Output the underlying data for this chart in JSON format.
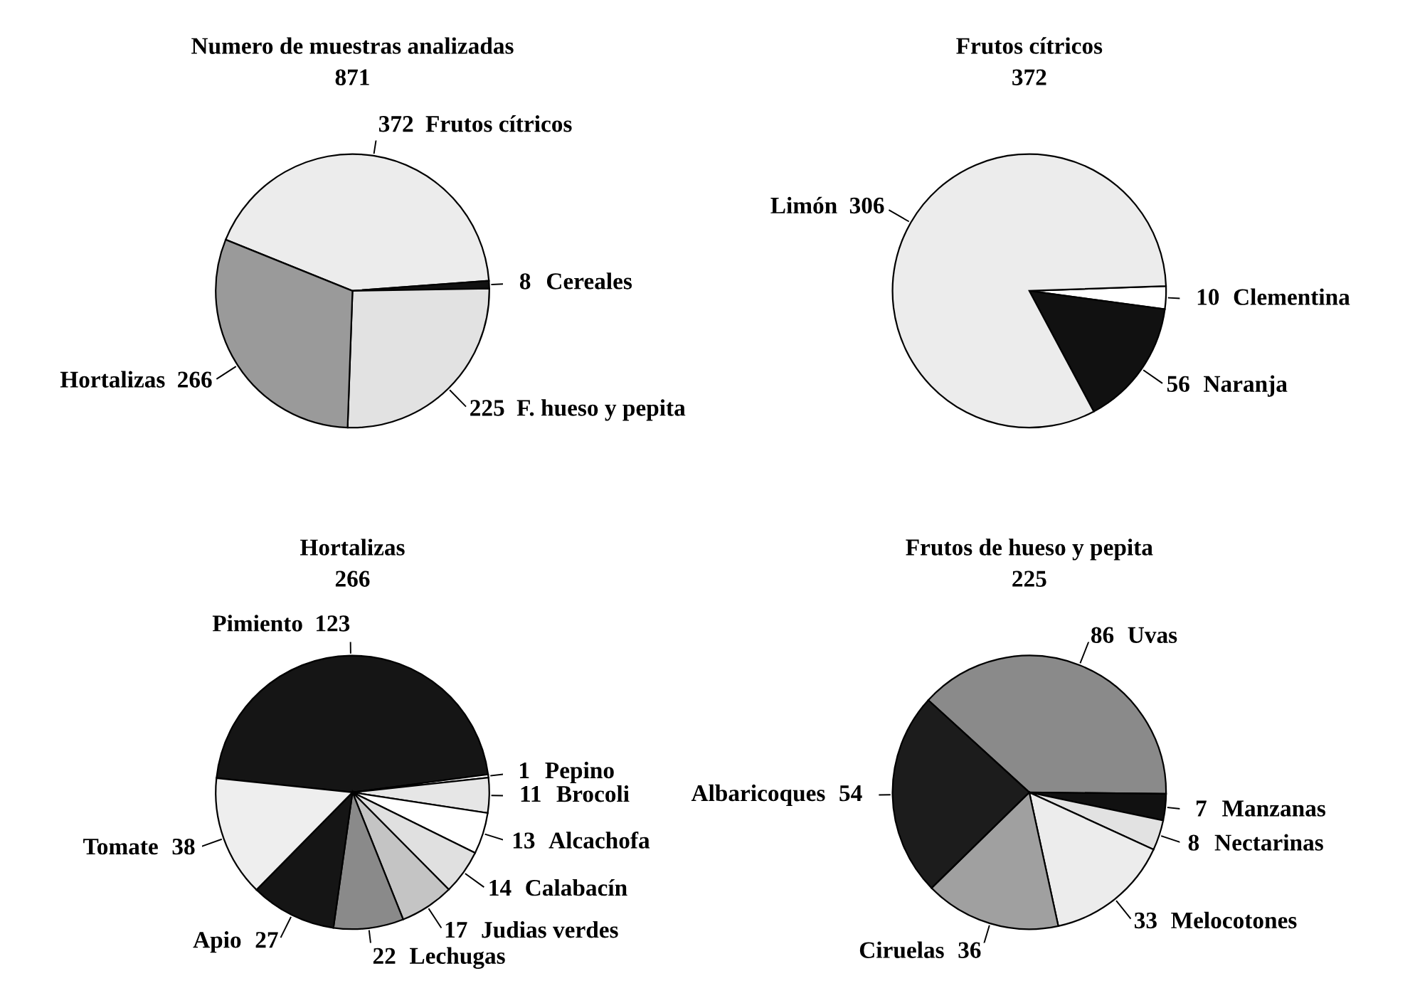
{
  "chart_data": [
    {
      "type": "pie",
      "title": "Numero de muestras analizadas",
      "subtitle": "871",
      "categories": [
        "Frutos cítricos",
        "Cereales",
        "F. hueso y pepita",
        "Hortalizas"
      ],
      "values": [
        372,
        8,
        225,
        266
      ],
      "colors": [
        "#ececec",
        "#111111",
        "#e2e2e2",
        "#9a9a9a"
      ],
      "data_labels": true
    },
    {
      "type": "pie",
      "title": "Frutos cítricos",
      "subtitle": "372",
      "categories": [
        "Clementina",
        "Naranja",
        "Limón"
      ],
      "values": [
        10,
        56,
        306
      ],
      "colors": [
        "#ffffff",
        "#111111",
        "#ececec"
      ],
      "data_labels": true
    },
    {
      "type": "pie",
      "title": "Hortalizas",
      "subtitle": "266",
      "categories": [
        "Pimiento",
        "Pepino",
        "Brocoli",
        "Alcachofa",
        "Calabacín",
        "Judias verdes",
        "Lechugas",
        "Apio",
        "Tomate"
      ],
      "values": [
        123,
        1,
        11,
        13,
        14,
        17,
        22,
        27,
        38
      ],
      "colors": [
        "#151515",
        "#ffffff",
        "#e6e6e6",
        "#ffffff",
        "#e0e0e0",
        "#c4c4c4",
        "#8a8a8a",
        "#151515",
        "#eeeeee"
      ],
      "data_labels": true
    },
    {
      "type": "pie",
      "title": "Frutos de hueso y pepita",
      "subtitle": "225",
      "categories": [
        "Uvas",
        "Manzanas",
        "Nectarinas",
        "Melocotones",
        "Ciruelas",
        "Albaricoques"
      ],
      "values": [
        86,
        7,
        8,
        33,
        36,
        54
      ],
      "colors": [
        "#8a8a8a",
        "#111111",
        "#e2e2e2",
        "#ececec",
        "#a0a0a0",
        "#1c1c1c"
      ],
      "data_labels": true
    }
  ]
}
